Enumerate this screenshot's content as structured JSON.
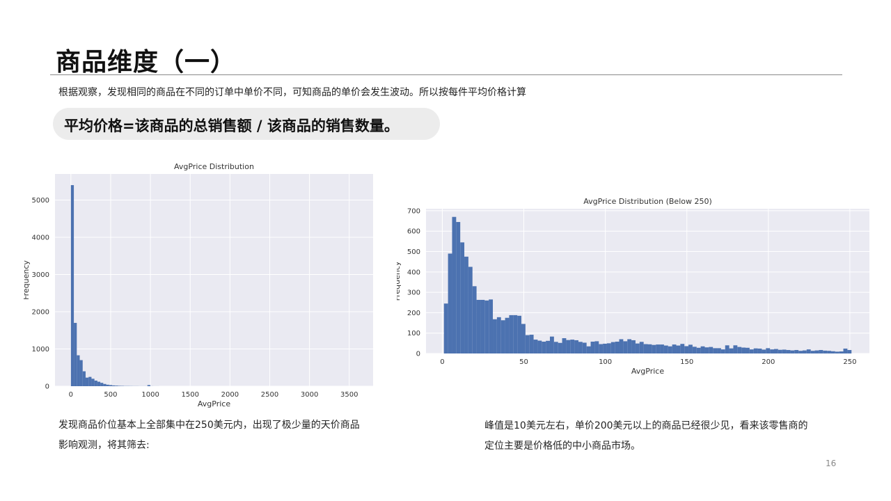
{
  "slide": {
    "title": "商品维度（一）",
    "intro": "根据观察，发现相同的商品在不同的订单中单价不同，可知商品的单价会发生波动。所以按每件平均价格计算",
    "formula": "平均价格=该商品的总销售额 / 该商品的销售数量。",
    "note_left": "发现商品价位基本上全部集中在250美元内，出现了极少量的天价商品影响观测，将其筛去:",
    "note_right": "峰值是10美元左右，单价200美元以上的商品已经很少见，看来该零售商的定位主要是价格低的中小商品市场。",
    "page_number": "16"
  },
  "colors": {
    "bar": "#4c72b0",
    "plot_bg": "#eaeaf2",
    "grid": "#ffffff"
  },
  "chart_data": [
    {
      "type": "bar",
      "title": "AvgPrice Distribution",
      "xlabel": "AvgPrice",
      "ylabel": "Frequency",
      "xlim": [
        -200,
        3800
      ],
      "ylim": [
        0,
        5700
      ],
      "xticks": [
        0,
        500,
        1000,
        1500,
        2000,
        2500,
        3000,
        3500
      ],
      "yticks": [
        0,
        1000,
        2000,
        3000,
        4000,
        5000
      ],
      "bin_edges_start": 0,
      "bin_width": 37,
      "values": [
        5400,
        1700,
        830,
        700,
        400,
        230,
        250,
        200,
        150,
        120,
        90,
        60,
        40,
        30,
        20,
        15,
        10,
        8,
        5,
        5,
        4,
        3,
        3,
        2,
        2,
        2,
        30,
        2,
        1,
        1
      ],
      "grid": true
    },
    {
      "type": "bar",
      "title": "AvgPrice Distribution (Below 250)",
      "xlabel": "AvgPrice",
      "ylabel": "Frequency",
      "xlim": [
        -10,
        262
      ],
      "ylim": [
        0,
        710
      ],
      "xticks": [
        0,
        50,
        100,
        150,
        200,
        250
      ],
      "yticks": [
        0,
        100,
        200,
        300,
        400,
        500,
        600,
        700
      ],
      "bin_edges_start": 1,
      "bin_width": 2.5,
      "values": [
        245,
        490,
        670,
        645,
        545,
        475,
        425,
        330,
        263,
        263,
        260,
        265,
        168,
        178,
        163,
        175,
        188,
        188,
        185,
        145,
        90,
        92,
        68,
        63,
        58,
        62,
        83,
        57,
        52,
        75,
        66,
        68,
        65,
        57,
        53,
        35,
        58,
        60,
        46,
        48,
        50,
        56,
        58,
        70,
        60,
        70,
        65,
        49,
        57,
        46,
        45,
        42,
        44,
        44,
        39,
        35,
        44,
        39,
        47,
        36,
        43,
        33,
        28,
        35,
        30,
        32,
        26,
        26,
        20,
        40,
        25,
        40,
        32,
        29,
        28,
        20,
        25,
        24,
        19,
        26,
        20,
        22,
        18,
        19,
        17,
        15,
        17,
        13,
        15,
        20,
        13,
        15,
        17,
        14,
        13,
        11,
        9,
        10,
        24,
        17
      ],
      "grid": true
    }
  ]
}
